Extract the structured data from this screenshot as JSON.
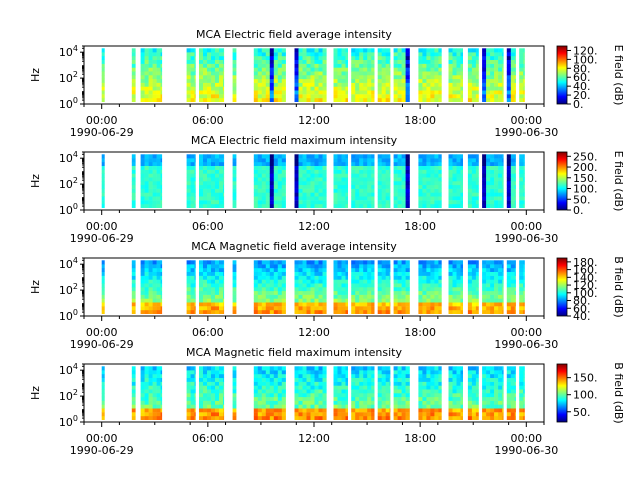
{
  "colors": {
    "jet": [
      "#00007f",
      "#0000ff",
      "#007fff",
      "#00ffff",
      "#7fff7f",
      "#ffff00",
      "#ff7f00",
      "#ff0000",
      "#7f0000"
    ],
    "background": "#ffffff",
    "axis": "#000000"
  },
  "chart_data": [
    {
      "type": "heatmap",
      "title": "MCA  Electric field average intensity",
      "ylabel": "Hz",
      "yscale": "log",
      "ylim": [
        1,
        30000
      ],
      "yticks": [
        {
          "v": 1,
          "b": "10",
          "e": "0"
        },
        {
          "v": 100,
          "b": "10",
          "e": "2"
        },
        {
          "v": 10000,
          "b": "10",
          "e": "4"
        }
      ],
      "colorbar": {
        "label": "E field (dB)",
        "range": [
          0,
          130
        ],
        "ticks": [
          "0.",
          "20.",
          "40.",
          "60.",
          "80.",
          "100.",
          "120."
        ],
        "tick_values": [
          0,
          20,
          40,
          60,
          80,
          100,
          120
        ]
      },
      "mode": "E-avg"
    },
    {
      "type": "heatmap",
      "title": "MCA  Electric field maximum intensity",
      "ylabel": "Hz",
      "yscale": "log",
      "ylim": [
        1,
        30000
      ],
      "yticks": [
        {
          "v": 1,
          "b": "10",
          "e": "0"
        },
        {
          "v": 100,
          "b": "10",
          "e": "2"
        },
        {
          "v": 10000,
          "b": "10",
          "e": "4"
        }
      ],
      "colorbar": {
        "label": "E field (dB)",
        "range": [
          0,
          270
        ],
        "ticks": [
          "0.",
          "50.",
          "100.",
          "150.",
          "200.",
          "250."
        ],
        "tick_values": [
          0,
          50,
          100,
          150,
          200,
          250
        ]
      },
      "mode": "E-max"
    },
    {
      "type": "heatmap",
      "title": "MCA  Magnetic field average intensity",
      "ylabel": "Hz",
      "yscale": "log",
      "ylim": [
        1,
        30000
      ],
      "yticks": [
        {
          "v": 1,
          "b": "10",
          "e": "0"
        },
        {
          "v": 100,
          "b": "10",
          "e": "2"
        },
        {
          "v": 10000,
          "b": "10",
          "e": "4"
        }
      ],
      "colorbar": {
        "label": "B field (dB)",
        "range": [
          40,
          190
        ],
        "ticks": [
          "40.",
          "60.",
          "80.",
          "100.",
          "120.",
          "140.",
          "160.",
          "180."
        ],
        "tick_values": [
          40,
          60,
          80,
          100,
          120,
          140,
          160,
          180
        ]
      },
      "mode": "B-avg"
    },
    {
      "type": "heatmap",
      "title": "MCA  Magnetic field maximum intensity",
      "ylabel": "Hz",
      "yscale": "log",
      "ylim": [
        1,
        30000
      ],
      "yticks": [
        {
          "v": 1,
          "b": "10",
          "e": "0"
        },
        {
          "v": 100,
          "b": "10",
          "e": "2"
        },
        {
          "v": 10000,
          "b": "10",
          "e": "4"
        }
      ],
      "colorbar": {
        "label": "B field (dB)",
        "range": [
          20,
          190
        ],
        "ticks": [
          "50.",
          "100.",
          "150."
        ],
        "tick_values": [
          50,
          100,
          150
        ]
      },
      "mode": "B-max"
    }
  ],
  "x_axis": {
    "range_hours": [
      -1,
      25
    ],
    "major_ticks": [
      {
        "hour": 0,
        "label": "00:00"
      },
      {
        "hour": 6,
        "label": "06:00"
      },
      {
        "hour": 12,
        "label": "12:00"
      },
      {
        "hour": 18,
        "label": "18:00"
      },
      {
        "hour": 24,
        "label": "00:00"
      }
    ],
    "minor_tick_step_hours": 2,
    "date_left": "1990-06-29",
    "date_right": "1990-06-30"
  },
  "data_blocks_hours": [
    [
      0.0,
      0.15
    ],
    [
      1.7,
      1.9
    ],
    [
      2.2,
      3.4
    ],
    [
      4.8,
      5.3
    ],
    [
      5.5,
      6.9
    ],
    [
      7.4,
      7.6
    ],
    [
      8.6,
      10.4
    ],
    [
      10.9,
      12.7
    ],
    [
      13.1,
      13.9
    ],
    [
      14.1,
      15.4
    ],
    [
      15.6,
      16.3
    ],
    [
      16.5,
      17.4
    ],
    [
      17.9,
      19.2
    ],
    [
      19.6,
      20.4
    ],
    [
      20.7,
      21.3
    ],
    [
      21.5,
      22.7
    ],
    [
      22.9,
      23.4
    ],
    [
      23.6,
      23.9
    ]
  ]
}
